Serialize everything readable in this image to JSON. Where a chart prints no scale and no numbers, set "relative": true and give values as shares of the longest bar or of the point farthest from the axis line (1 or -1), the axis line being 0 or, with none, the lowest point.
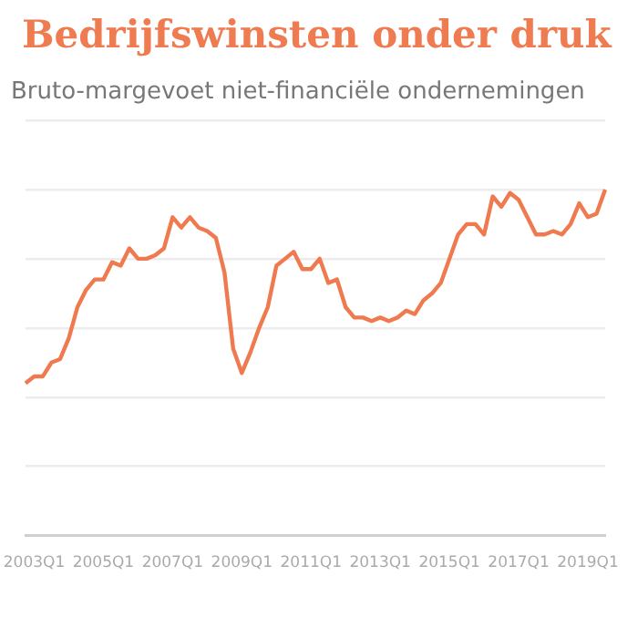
{
  "chart_data": {
    "type": "line",
    "title": "Bedrijfswinsten onder druk",
    "subtitle": "Bruto-margevoet niet-financiële ondernemingen",
    "relative": true,
    "grid": "y",
    "legend": false,
    "marker": "none",
    "line_style": "solid",
    "categories": [
      null,
      "2003Q1",
      null,
      null,
      null,
      null,
      null,
      null,
      null,
      "2005Q1",
      null,
      null,
      null,
      null,
      null,
      null,
      null,
      "2007Q1",
      null,
      null,
      null,
      null,
      null,
      null,
      null,
      "2009Q1",
      null,
      null,
      null,
      null,
      null,
      null,
      null,
      "2011Q1",
      null,
      null,
      null,
      null,
      null,
      null,
      null,
      "2013Q1",
      null,
      null,
      null,
      null,
      null,
      null,
      null,
      "2015Q1",
      null,
      null,
      null,
      null,
      null,
      null,
      null,
      "2017Q1",
      null,
      null,
      null,
      null,
      null,
      null,
      null,
      "2019Q1",
      null,
      null
    ],
    "series": [
      {
        "color": "#f07a4f",
        "values": [
          0.44,
          0.46,
          0.46,
          0.5,
          0.51,
          0.57,
          0.66,
          0.71,
          0.74,
          0.74,
          0.79,
          0.78,
          0.83,
          0.8,
          0.8,
          0.81,
          0.83,
          0.92,
          0.89,
          0.92,
          0.89,
          0.88,
          0.86,
          0.76,
          0.54,
          0.47,
          0.53,
          0.6,
          0.66,
          0.78,
          0.8,
          0.82,
          0.77,
          0.77,
          0.8,
          0.73,
          0.74,
          0.66,
          0.63,
          0.63,
          0.62,
          0.63,
          0.62,
          0.63,
          0.65,
          0.64,
          0.68,
          0.7,
          0.73,
          0.8,
          0.87,
          0.9,
          0.9,
          0.87,
          0.98,
          0.95,
          0.99,
          0.97,
          0.92,
          0.87,
          0.87,
          0.88,
          0.87,
          0.9,
          0.96,
          0.92,
          0.93,
          1
        ]
      }
    ]
  }
}
